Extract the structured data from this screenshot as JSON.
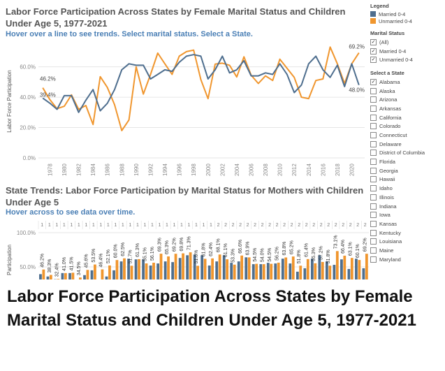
{
  "header": {
    "title": "Labor Force Participation Across States by Female Marital Status and Children Under Age 5, 1977-2021",
    "hint": "Hover over a line to see trends. Select marital status. Select a State."
  },
  "line_panel": {
    "ylabel": "Labor Force Participation",
    "yticks": [
      "0.0%",
      "20.0%",
      "40.0%",
      "60.0%"
    ],
    "xticks": [
      "1978",
      "1980",
      "1982",
      "1984",
      "1986",
      "1988",
      "1990",
      "1992",
      "1994",
      "1996",
      "1998",
      "2000",
      "2002",
      "2004",
      "2006",
      "2008",
      "2010",
      "2012",
      "2014",
      "2016",
      "2018",
      "2020"
    ],
    "start_labels": {
      "unmarried": "46.2%",
      "married": "39.4%"
    },
    "end_labels": {
      "unmarried": "69.2%",
      "married": "48.0%"
    }
  },
  "bar_panel": {
    "title": "State Trends: Labor Force Participation by Marital Status for Mothers with Children Under Age 5",
    "hint": "Hover across to see data over time.",
    "ylabel": "Participation",
    "yticks": [
      "100.0%",
      "50.0%"
    ],
    "top_counts": [
      "1",
      "1",
      "1",
      "1",
      "1",
      "1",
      "1",
      "1",
      "1",
      "1",
      "1",
      "1",
      "1",
      "1",
      "1",
      "1",
      "1",
      "1",
      "1",
      "1",
      "1",
      "1",
      "1",
      "1",
      "2",
      "2",
      "2",
      "2",
      "2",
      "2",
      "2",
      "2",
      "2",
      "2",
      "2",
      "2",
      "2",
      "2",
      "2",
      "2",
      "2",
      "2",
      "2",
      "2",
      "2"
    ],
    "value_labels": [
      "46.2%",
      "38.3%",
      "32.4%",
      "41.0%",
      "41.5%",
      "34.5%",
      "45.6%",
      "53.5%",
      "46.4%",
      "52.1%",
      "60.0%",
      "62.5%",
      "51.7%",
      "61.3%",
      "55.1%",
      "56.1%",
      "69.3%",
      "65.3%",
      "69.2%",
      "69.8%",
      "71.3%",
      "51.6%",
      "61.8%",
      "62.4%",
      "68.1%",
      "61.1%",
      "53.3%",
      "66.6%",
      "63.9%",
      "54.5%",
      "54.0%",
      "54.5%",
      "56.2%",
      "63.8%",
      "65.2%",
      "51.8%",
      "61.4%",
      "55.3%",
      "57.2%",
      "51.8%",
      "73.1%",
      "66.4%",
      "63.1%",
      "60.1%",
      "69.2%"
    ]
  },
  "sidebar": {
    "legend_header": "Legend",
    "legend_items": [
      {
        "label": "Married 0-4",
        "color": "#4e6e8e"
      },
      {
        "label": "Unmarried 0-4",
        "color": "#f0962e"
      }
    ],
    "marital_header": "Marital Status",
    "marital_options": [
      {
        "label": "(All)",
        "checked": "✓"
      },
      {
        "label": "Married 0-4",
        "checked": "✓"
      },
      {
        "label": "Unmarried 0-4",
        "checked": "✓"
      }
    ],
    "state_header": "Select a State",
    "states": [
      {
        "label": "Alabama",
        "checked": "✓"
      },
      {
        "label": "Alaska",
        "checked": ""
      },
      {
        "label": "Arizona",
        "checked": ""
      },
      {
        "label": "Arkansas",
        "checked": ""
      },
      {
        "label": "California",
        "checked": ""
      },
      {
        "label": "Colorado",
        "checked": ""
      },
      {
        "label": "Connecticut",
        "checked": ""
      },
      {
        "label": "Delaware",
        "checked": ""
      },
      {
        "label": "District of Columbia",
        "checked": ""
      },
      {
        "label": "Florida",
        "checked": ""
      },
      {
        "label": "Georgia",
        "checked": ""
      },
      {
        "label": "Hawaii",
        "checked": ""
      },
      {
        "label": "Idaho",
        "checked": ""
      },
      {
        "label": "Illinois",
        "checked": ""
      },
      {
        "label": "Indiana",
        "checked": ""
      },
      {
        "label": "Iowa",
        "checked": ""
      },
      {
        "label": "Kansas",
        "checked": ""
      },
      {
        "label": "Kentucky",
        "checked": ""
      },
      {
        "label": "Louisiana",
        "checked": ""
      },
      {
        "label": "Maine",
        "checked": ""
      },
      {
        "label": "Maryland",
        "checked": ""
      }
    ]
  },
  "caption": {
    "text": "Labor Force Participation Across States by Female Marital Status and Children Under Age 5, 1977-2021"
  },
  "chart_data": [
    {
      "type": "line",
      "title": "Labor Force Participation Across States by Female Marital Status and Children Under Age 5, 1977-2021",
      "ylabel": "Labor Force Participation",
      "ylim": [
        0,
        75
      ],
      "x": [
        1977,
        1978,
        1979,
        1980,
        1981,
        1982,
        1983,
        1984,
        1985,
        1986,
        1987,
        1988,
        1989,
        1990,
        1991,
        1992,
        1993,
        1994,
        1995,
        1996,
        1997,
        1998,
        1999,
        2000,
        2001,
        2002,
        2003,
        2004,
        2005,
        2006,
        2007,
        2008,
        2009,
        2010,
        2011,
        2012,
        2013,
        2014,
        2015,
        2016,
        2017,
        2018,
        2019,
        2020,
        2021
      ],
      "series": [
        {
          "name": "Married 0-4",
          "color": "#4e6e8e",
          "values": [
            39.4,
            36,
            32,
            41,
            41,
            30,
            38,
            45,
            31,
            36,
            45,
            58,
            62,
            61,
            61,
            52,
            55,
            58,
            57,
            63,
            67,
            68,
            67,
            52,
            58,
            67,
            56,
            58,
            64,
            54,
            54,
            56,
            55,
            62,
            55,
            43,
            48,
            62,
            67,
            58,
            53,
            61,
            47,
            62,
            48
          ]
        },
        {
          "name": "Unmarried 0-4",
          "color": "#f0962e",
          "values": [
            46.2,
            38.3,
            32.4,
            34,
            41.5,
            32,
            34.5,
            22,
            53.5,
            46.4,
            35,
            18,
            25,
            60,
            42,
            55,
            69,
            62,
            55,
            67,
            70,
            71,
            51.6,
            39,
            61.8,
            62.4,
            61,
            53.3,
            66.6,
            54.5,
            49,
            54,
            51,
            65,
            59,
            53,
            40,
            39,
            51,
            52,
            73,
            62,
            49,
            62,
            69.2
          ]
        }
      ]
    },
    {
      "type": "bar",
      "title": "State Trends: Labor Force Participation by Marital Status for Mothers with Children Under Age 5",
      "ylabel": "Participation",
      "ylim": [
        0,
        100
      ],
      "categories": [
        "1977",
        "1978",
        "1979",
        "1980",
        "1981",
        "1982",
        "1983",
        "1984",
        "1985",
        "1986",
        "1987",
        "1988",
        "1989",
        "1990",
        "1991",
        "1992",
        "1993",
        "1994",
        "1995",
        "1996",
        "1997",
        "1998",
        "1999",
        "2000",
        "2001",
        "2002",
        "2003",
        "2004",
        "2005",
        "2006",
        "2007",
        "2008",
        "2009",
        "2010",
        "2011",
        "2012",
        "2013",
        "2014",
        "2015",
        "2016",
        "2017",
        "2018",
        "2019",
        "2020",
        "2021"
      ],
      "series": [
        {
          "name": "Married 0-4",
          "values": [
            39.4,
            36,
            32,
            41,
            41,
            30,
            38,
            45,
            31,
            36,
            45,
            58,
            62,
            61,
            61,
            52,
            55,
            58,
            57,
            63,
            67,
            68,
            67,
            52,
            58,
            67,
            56,
            58,
            64,
            54,
            54,
            56,
            55,
            62,
            55,
            43,
            48,
            62,
            67,
            58,
            53,
            61,
            47,
            62,
            48
          ]
        },
        {
          "name": "Unmarried 0-4",
          "values": [
            46.2,
            38.3,
            32.4,
            41.0,
            41.5,
            34.5,
            45.6,
            53.5,
            46.4,
            52.1,
            60.0,
            62.5,
            51.7,
            61.3,
            55.1,
            56.1,
            69.3,
            65.3,
            69.2,
            69.8,
            71.3,
            51.6,
            61.8,
            62.4,
            68.1,
            61.1,
            53.3,
            66.6,
            63.9,
            54.5,
            54.0,
            54.5,
            56.2,
            63.8,
            65.2,
            51.8,
            61.4,
            55.3,
            57.2,
            51.8,
            73.1,
            66.4,
            63.1,
            60.1,
            69.2
          ]
        }
      ]
    }
  ]
}
